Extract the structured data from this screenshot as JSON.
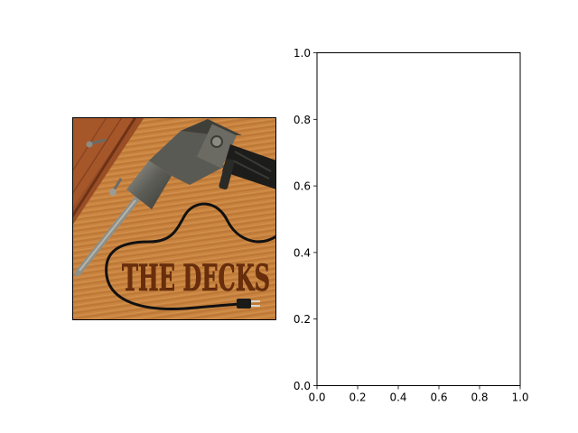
{
  "image_panel": {
    "artwork": "album-cover",
    "logo_text": "THE DECKS",
    "colors": {
      "wood": "#c8823f",
      "wood_dark": "#8b4a1c",
      "board": "#9a4e26",
      "logo": "#6a2e0c",
      "metal": "#7c7c74",
      "cord": "#111111"
    }
  },
  "chart_data": {
    "type": "scatter",
    "title": "",
    "xlabel": "",
    "ylabel": "",
    "xlim": [
      0.0,
      1.0
    ],
    "ylim": [
      0.0,
      1.0
    ],
    "grid": false,
    "series": [],
    "x_ticks": [
      0.0,
      0.2,
      0.4,
      0.6,
      0.8,
      1.0
    ],
    "y_ticks": [
      0.0,
      0.2,
      0.4,
      0.6,
      0.8,
      1.0
    ],
    "x_tick_labels": [
      "0.0",
      "0.2",
      "0.4",
      "0.6",
      "0.8",
      "1.0"
    ],
    "y_tick_labels": [
      "0.0",
      "0.2",
      "0.4",
      "0.6",
      "0.8",
      "1.0"
    ]
  }
}
